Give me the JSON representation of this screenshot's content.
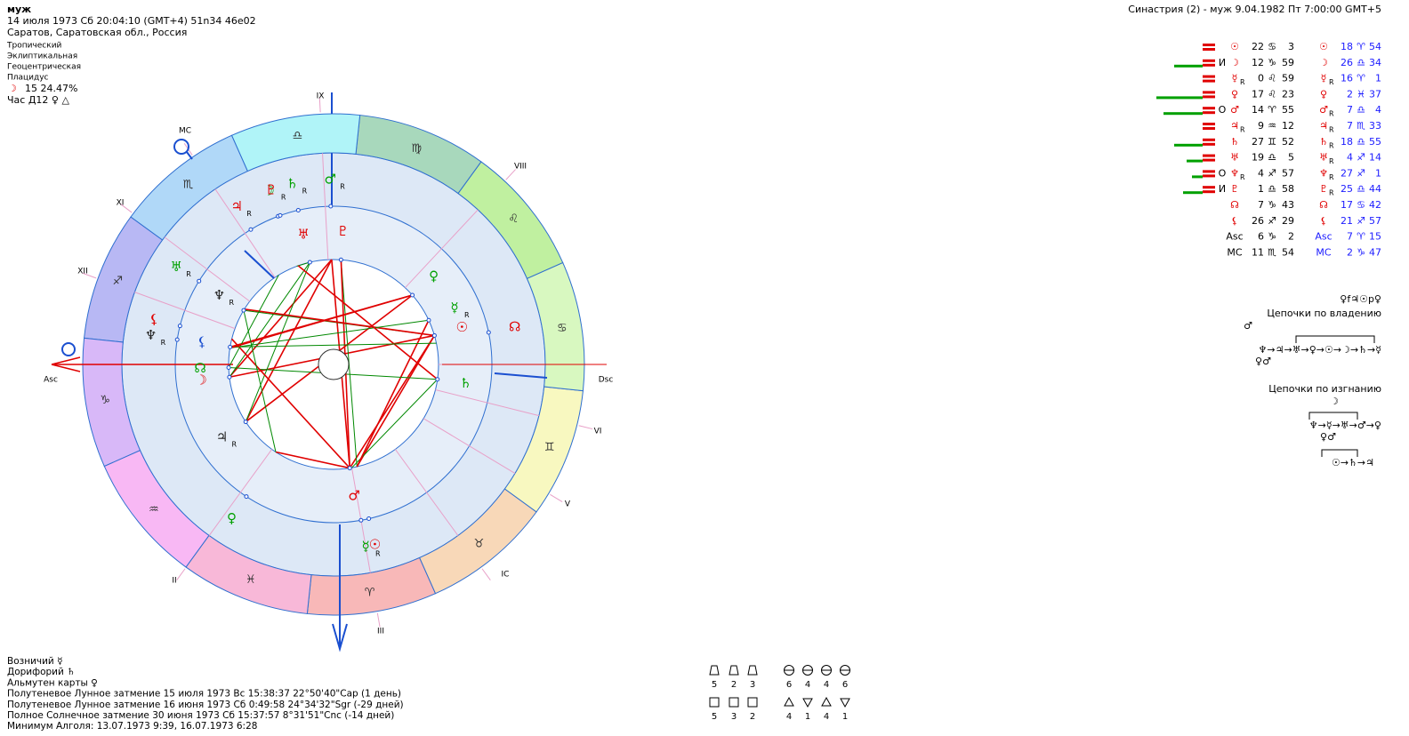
{
  "header": {
    "name": "муж",
    "datetime": "14 июля 1973  Сб  20:04:10 (GMT+4) 51n34  46e02",
    "place": "Саратов, Саратовская обл., Россия"
  },
  "settings": [
    "Тропический",
    "Эклиптикальная",
    "Геоцентрическая",
    "Плацидус"
  ],
  "moon_phase": {
    "glyph": "☽",
    "text": "15 24.47%"
  },
  "hour": "Час Д12 ♀ △",
  "synastry_title": "Синастрия (2) - муж  9.04.1982  Пт  7:00:00 GMT+5",
  "signs": [
    "♈",
    "♉",
    "♊",
    "♋",
    "♌",
    "♍",
    "♎",
    "♏",
    "♐",
    "♑",
    "♒",
    "♓"
  ],
  "houses": [
    "Asc",
    "II",
    "III",
    "IC",
    "V",
    "VI",
    "Dsc",
    "VIII",
    "IX",
    "MC",
    "XI",
    "XII"
  ],
  "planets": [
    {
      "glyph": "☉",
      "deg": 22,
      "sign": "♋",
      "min": 3,
      "syn": {
        "glyph": "☉",
        "deg": 18,
        "sign": "♈",
        "min": 54
      }
    },
    {
      "mark": "И",
      "glyph": "☽",
      "deg": 12,
      "sign": "♑",
      "min": 59,
      "syn": {
        "glyph": "☽",
        "deg": 26,
        "sign": "♎",
        "min": 34
      }
    },
    {
      "glyph": "☿",
      "retro": "R",
      "deg": 0,
      "sign": "♌",
      "min": 59,
      "syn": {
        "glyph": "☿",
        "retro": "R",
        "deg": 16,
        "sign": "♈",
        "min": 1
      }
    },
    {
      "glyph": "♀",
      "deg": 17,
      "sign": "♌",
      "min": 23,
      "syn": {
        "glyph": "♀",
        "deg": 2,
        "sign": "♓",
        "min": 37
      }
    },
    {
      "mark": "О",
      "glyph": "♂",
      "deg": 14,
      "sign": "♈",
      "min": 55,
      "syn": {
        "glyph": "♂",
        "retro": "R",
        "deg": 7,
        "sign": "♎",
        "min": 4
      }
    },
    {
      "glyph": "♃",
      "retro": "R",
      "deg": 9,
      "sign": "♒",
      "min": 12,
      "syn": {
        "glyph": "♃",
        "retro": "R",
        "deg": 7,
        "sign": "♏",
        "min": 33
      }
    },
    {
      "glyph": "♄",
      "deg": 27,
      "sign": "♊",
      "min": 52,
      "syn": {
        "glyph": "♄",
        "retro": "R",
        "deg": 18,
        "sign": "♎",
        "min": 55
      }
    },
    {
      "glyph": "♅",
      "deg": 19,
      "sign": "♎",
      "min": 5,
      "syn": {
        "glyph": "♅",
        "retro": "R",
        "deg": 4,
        "sign": "♐",
        "min": 14
      }
    },
    {
      "mark": "О",
      "glyph": "♆",
      "retro": "R",
      "deg": 4,
      "sign": "♐",
      "min": 57,
      "syn": {
        "glyph": "♆",
        "retro": "R",
        "deg": 27,
        "sign": "♐",
        "min": 1
      }
    },
    {
      "mark": "И",
      "glyph": "♇",
      "deg": 1,
      "sign": "♎",
      "min": 58,
      "syn": {
        "glyph": "♇",
        "retro": "R",
        "deg": 25,
        "sign": "♎",
        "min": 44
      }
    },
    {
      "glyph": "☊",
      "deg": 7,
      "sign": "♑",
      "min": 43,
      "syn": {
        "glyph": "☊",
        "deg": 17,
        "sign": "♋",
        "min": 42
      }
    },
    {
      "glyph": "⚸",
      "deg": 26,
      "sign": "♐",
      "min": 29,
      "syn": {
        "glyph": "⚸",
        "deg": 21,
        "sign": "♐",
        "min": 57
      }
    },
    {
      "glyph": "Asc",
      "deg": 6,
      "sign": "♑",
      "min": 2,
      "syn": {
        "glyph": "Asc",
        "deg": 7,
        "sign": "♈",
        "min": 15
      }
    },
    {
      "glyph": "MC",
      "deg": 11,
      "sign": "♏",
      "min": 54,
      "syn": {
        "glyph": "MC",
        "deg": 2,
        "sign": "♑",
        "min": 47
      }
    }
  ],
  "chains": {
    "formula": "♀f♃☉p♀",
    "own_title": "Цепочки по владению",
    "own_top": "♂",
    "own_chain": "♆→♃→♅→♀→☉→☽→♄→☿",
    "own_sub": "♀♂",
    "exile_title": "Цепочки по изгнанию",
    "exile_top": "☽",
    "exile_chain": "♆→☿→♅→♂→♀",
    "exile_sub": "♀♂",
    "exile_chain2": "☉→♄→♃"
  },
  "notes": [
    "Возничий ☿",
    "Дорифорий ♄",
    "Альмутен карты ♀",
    "Полутеневое Лунное затмение 15 июля 1973 Вс 15:38:37 22°50'40\"Cap (1 день)",
    "Полутеневое Лунное затмение 16 июня 1973 Сб  0:49:58 24°34'32\"Sgr (-29 дней)",
    "Полное Солнечное затмение 30 июня 1973 Сб 15:37:57  8°31'51\"Cnc (-14 дней)",
    "Минимум Алголя: 13.07.1973  9:39,  16.07.1973  6:28"
  ],
  "aspect_counts": [
    [
      5,
      2,
      3
    ],
    [
      6,
      4,
      4,
      6
    ],
    [
      5,
      3,
      2
    ],
    [
      4,
      1,
      4,
      1
    ]
  ]
}
